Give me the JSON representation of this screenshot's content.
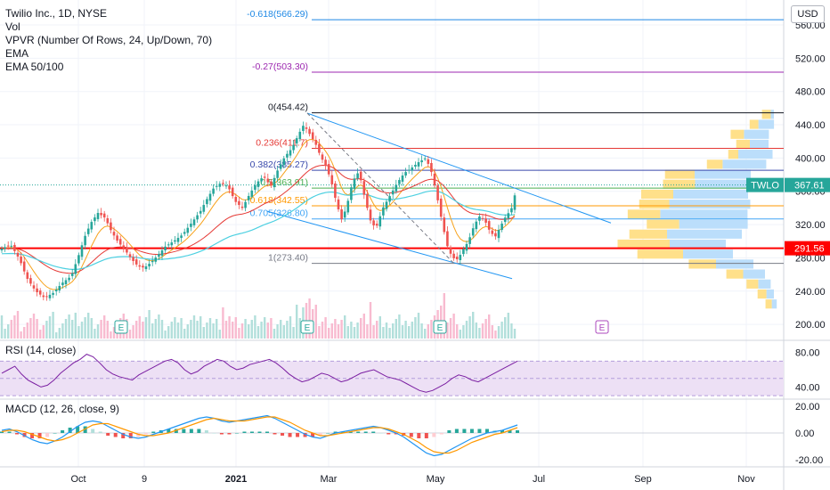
{
  "header": {
    "symbol": "Twilio Inc., 1D, NYSE",
    "indicators": [
      "Vol",
      "VPVR (Number Of Rows, 24, Up/Down, 70)",
      "EMA",
      "EMA 50/100"
    ],
    "currency_button": "USD"
  },
  "panels": {
    "rsi_title": "RSI (14, close)",
    "macd_title": "MACD (12, 26, close, 9)"
  },
  "colors": {
    "up": "#26a69a",
    "down": "#ef5350",
    "ema_fast": "#f7a21b",
    "ema_50": "#e53935",
    "ema_100": "#4dd0e1",
    "channel": "#2196f3",
    "rsi": "#7b1fa2",
    "rsi_band": "#ede0f5",
    "macd": "#2196f3",
    "signal": "#ff9800",
    "support": "#ff0000",
    "badge": "#26a69a"
  },
  "chart_data": [
    {
      "type": "line",
      "title": "Twilio Inc., 1D, NYSE",
      "x_tick_labels": [
        "Oct",
        "9",
        "2021",
        "Mar",
        "May",
        "Jul",
        "Sep",
        "Nov"
      ],
      "y_tick_labels": [
        "560.00",
        "520.00",
        "480.00",
        "440.00",
        "400.00",
        "360.00",
        "320.00",
        "280.00",
        "240.00",
        "200.00"
      ],
      "ylim": [
        183,
        590
      ],
      "price_series": [
        {
          "x": 0,
          "y": 290
        },
        {
          "x": 12,
          "y": 296
        },
        {
          "x": 22,
          "y": 278
        },
        {
          "x": 30,
          "y": 256
        },
        {
          "x": 40,
          "y": 240
        },
        {
          "x": 50,
          "y": 232
        },
        {
          "x": 60,
          "y": 238
        },
        {
          "x": 70,
          "y": 250
        },
        {
          "x": 80,
          "y": 258
        },
        {
          "x": 88,
          "y": 282
        },
        {
          "x": 95,
          "y": 305
        },
        {
          "x": 102,
          "y": 322
        },
        {
          "x": 110,
          "y": 334
        },
        {
          "x": 118,
          "y": 328
        },
        {
          "x": 125,
          "y": 312
        },
        {
          "x": 132,
          "y": 300
        },
        {
          "x": 140,
          "y": 290
        },
        {
          "x": 148,
          "y": 278
        },
        {
          "x": 155,
          "y": 270
        },
        {
          "x": 162,
          "y": 268
        },
        {
          "x": 170,
          "y": 275
        },
        {
          "x": 178,
          "y": 284
        },
        {
          "x": 186,
          "y": 294
        },
        {
          "x": 195,
          "y": 300
        },
        {
          "x": 205,
          "y": 308
        },
        {
          "x": 215,
          "y": 322
        },
        {
          "x": 225,
          "y": 336
        },
        {
          "x": 232,
          "y": 350
        },
        {
          "x": 240,
          "y": 364
        },
        {
          "x": 248,
          "y": 370
        },
        {
          "x": 256,
          "y": 366
        },
        {
          "x": 264,
          "y": 348
        },
        {
          "x": 272,
          "y": 340
        },
        {
          "x": 280,
          "y": 356
        },
        {
          "x": 288,
          "y": 370
        },
        {
          "x": 296,
          "y": 378
        },
        {
          "x": 304,
          "y": 366
        },
        {
          "x": 312,
          "y": 386
        },
        {
          "x": 320,
          "y": 402
        },
        {
          "x": 328,
          "y": 412
        },
        {
          "x": 335,
          "y": 428
        },
        {
          "x": 341,
          "y": 440
        },
        {
          "x": 347,
          "y": 430
        },
        {
          "x": 354,
          "y": 418
        },
        {
          "x": 360,
          "y": 402
        },
        {
          "x": 366,
          "y": 390
        },
        {
          "x": 372,
          "y": 372
        },
        {
          "x": 378,
          "y": 345
        },
        {
          "x": 384,
          "y": 325
        },
        {
          "x": 390,
          "y": 345
        },
        {
          "x": 396,
          "y": 372
        },
        {
          "x": 403,
          "y": 384
        },
        {
          "x": 410,
          "y": 350
        },
        {
          "x": 416,
          "y": 325
        },
        {
          "x": 422,
          "y": 315
        },
        {
          "x": 430,
          "y": 340
        },
        {
          "x": 438,
          "y": 355
        },
        {
          "x": 446,
          "y": 370
        },
        {
          "x": 454,
          "y": 382
        },
        {
          "x": 462,
          "y": 388
        },
        {
          "x": 470,
          "y": 395
        },
        {
          "x": 478,
          "y": 400
        },
        {
          "x": 484,
          "y": 385
        },
        {
          "x": 490,
          "y": 358
        },
        {
          "x": 496,
          "y": 325
        },
        {
          "x": 502,
          "y": 295
        },
        {
          "x": 508,
          "y": 280
        },
        {
          "x": 514,
          "y": 278
        },
        {
          "x": 520,
          "y": 290
        },
        {
          "x": 526,
          "y": 300
        },
        {
          "x": 532,
          "y": 318
        },
        {
          "x": 538,
          "y": 330
        },
        {
          "x": 544,
          "y": 326
        },
        {
          "x": 550,
          "y": 312
        },
        {
          "x": 556,
          "y": 305
        },
        {
          "x": 562,
          "y": 318
        },
        {
          "x": 568,
          "y": 330
        },
        {
          "x": 574,
          "y": 338
        },
        {
          "x": 581,
          "y": 368
        }
      ],
      "fib_levels": [
        {
          "label": "-0.618(566.29)",
          "value": 566.29,
          "color": "#1e88e5"
        },
        {
          "label": "-0.27(503.30)",
          "value": 503.3,
          "color": "#9c27b0"
        },
        {
          "label": "0(454.42)",
          "value": 454.42,
          "color": "#131722"
        },
        {
          "label": "0.236(411.7)",
          "value": 411.7,
          "color": "#e53935"
        },
        {
          "label": "0.382(385.27)",
          "value": 385.27,
          "color": "#3949ab"
        },
        {
          "label": "0.5(363.91)",
          "value": 363.91,
          "color": "#4caf50"
        },
        {
          "label": "0.618(342.55)",
          "value": 342.55,
          "color": "#ff9800"
        },
        {
          "label": "0.705(326.80)",
          "value": 326.8,
          "color": "#42a5f5"
        },
        {
          "label": "1(273.40)",
          "value": 273.4,
          "color": "#787b86"
        }
      ],
      "support_level": 291.56,
      "last_price": {
        "symbol": "TWLO",
        "value": "367.61",
        "support_label": "291.56"
      },
      "earnings_markers": [
        "E",
        "E",
        "E",
        "E"
      ]
    },
    {
      "type": "line",
      "title": "RSI (14, close)",
      "y_tick_labels": [
        "80.00",
        "40.00"
      ],
      "ylim": [
        28,
        92
      ],
      "overbought": 70,
      "oversold": 30,
      "values": [
        56,
        60,
        64,
        55,
        48,
        44,
        40,
        42,
        48,
        56,
        62,
        68,
        72,
        78,
        75,
        68,
        60,
        55,
        52,
        50,
        48,
        54,
        58,
        62,
        66,
        70,
        72,
        68,
        60,
        55,
        58,
        64,
        68,
        72,
        70,
        64,
        60,
        62,
        66,
        68,
        70,
        72,
        68,
        62,
        55,
        50,
        46,
        48,
        52,
        56,
        54,
        50,
        46,
        48,
        52,
        56,
        58,
        60,
        56,
        52,
        50,
        48,
        44,
        40,
        36,
        34,
        36,
        40,
        44,
        50,
        54,
        52,
        48,
        46,
        50,
        54,
        58,
        62,
        66,
        70
      ]
    },
    {
      "type": "line",
      "title": "MACD (12, 26, close, 9)",
      "y_tick_labels": [
        "20.00",
        "0.00",
        "-20.00"
      ],
      "ylim": [
        -24,
        24
      ],
      "macd": [
        2,
        3,
        1,
        -2,
        -5,
        -7,
        -8,
        -6,
        -3,
        1,
        5,
        8,
        9,
        8,
        5,
        2,
        -1,
        -3,
        -4,
        -3,
        -1,
        1,
        3,
        5,
        7,
        9,
        11,
        12,
        11,
        9,
        8,
        9,
        10,
        11,
        12,
        13,
        11,
        8,
        5,
        2,
        -1,
        -3,
        -4,
        -2,
        0,
        1,
        2,
        3,
        4,
        5,
        4,
        2,
        0,
        -3,
        -7,
        -11,
        -15,
        -17,
        -16,
        -13,
        -10,
        -7,
        -4,
        -2,
        0,
        1,
        2,
        4,
        6
      ],
      "signal": [
        1,
        2,
        2,
        1,
        -1,
        -3,
        -5,
        -6,
        -5,
        -3,
        0,
        3,
        6,
        7,
        7,
        5,
        3,
        1,
        -1,
        -2,
        -2,
        -1,
        0,
        2,
        4,
        6,
        8,
        10,
        11,
        10,
        9,
        9,
        9,
        10,
        11,
        12,
        12,
        10,
        8,
        5,
        2,
        0,
        -2,
        -2,
        -1,
        0,
        1,
        2,
        3,
        4,
        4,
        3,
        1,
        -1,
        -4,
        -7,
        -11,
        -14,
        -15,
        -15,
        -13,
        -10,
        -7,
        -5,
        -3,
        -1,
        0,
        2,
        4
      ]
    }
  ]
}
